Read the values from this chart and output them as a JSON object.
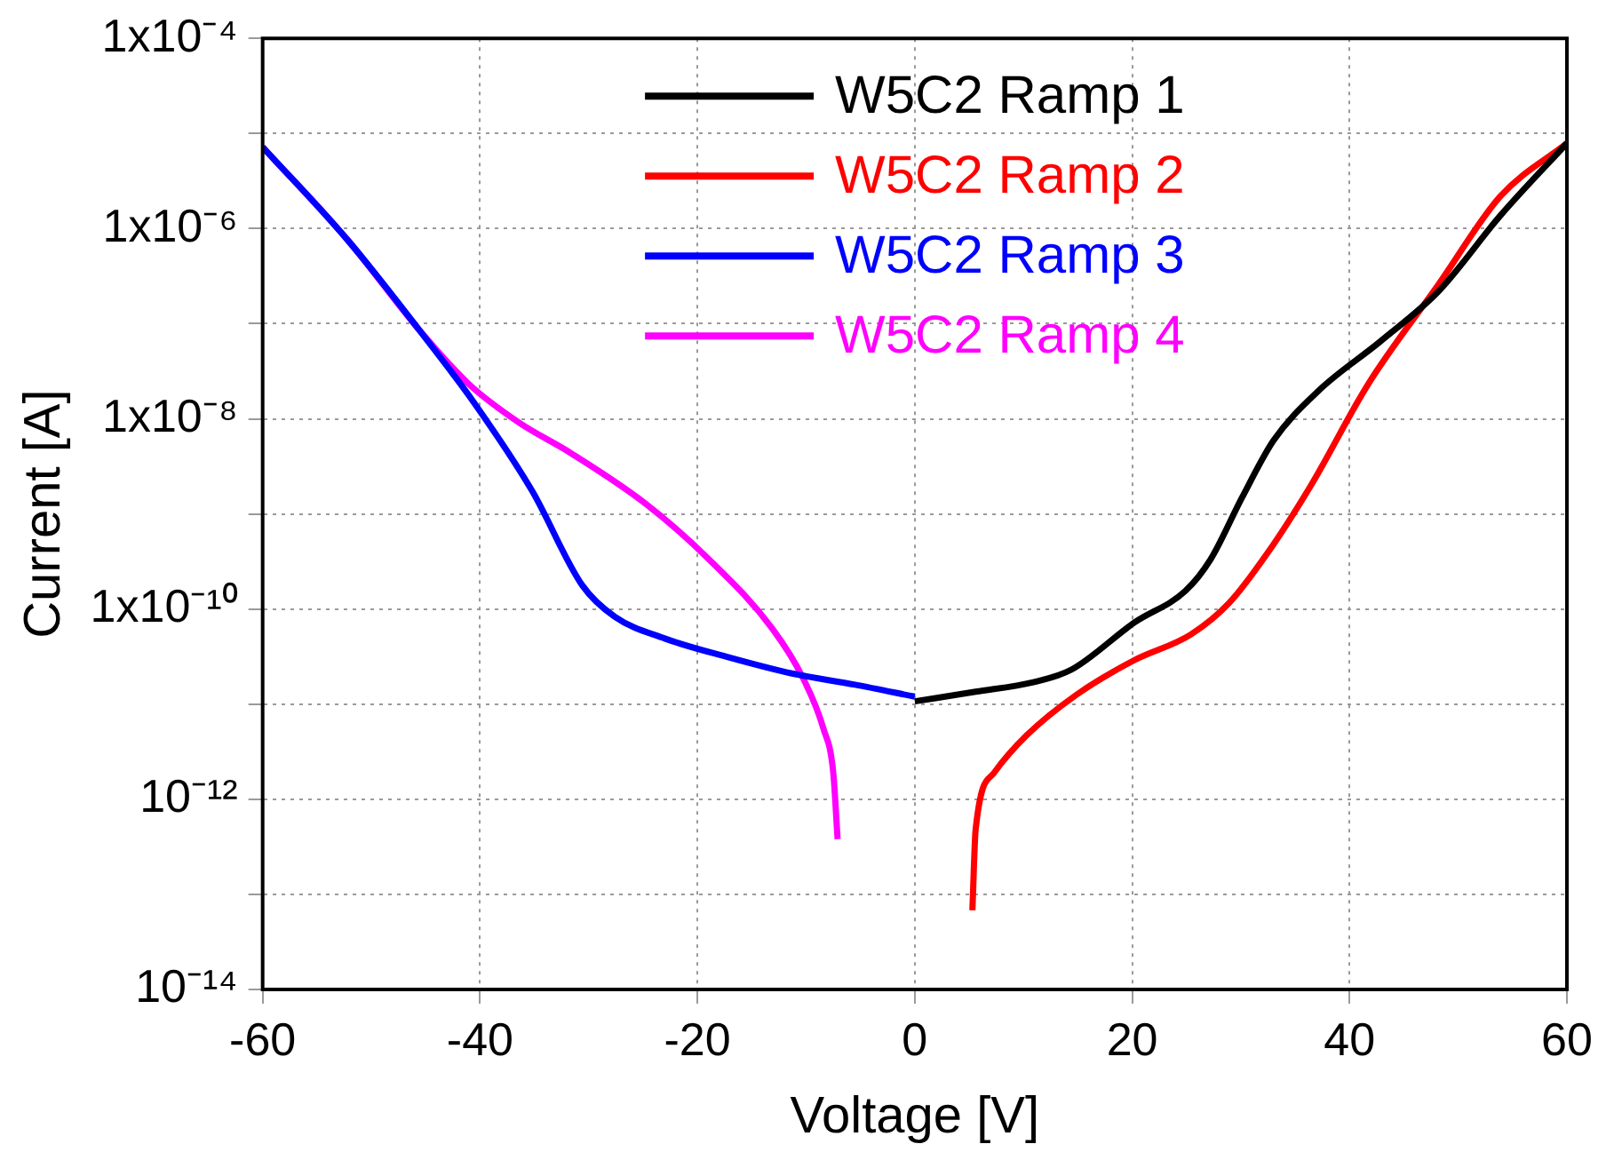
{
  "chart_data": {
    "type": "line",
    "xlabel": "Voltage [V]",
    "ylabel": "Current [A]",
    "log": "y",
    "xlim": [
      -60,
      60
    ],
    "xticks": [
      -60,
      -40,
      -20,
      0,
      20,
      40,
      60
    ],
    "ylim": [
      1e-14,
      0.0001
    ],
    "yticks": [
      {
        "value": 1e-14,
        "label": "10⁻¹⁴"
      },
      {
        "value": 1e-13,
        "label": null
      },
      {
        "value": 1e-12,
        "label": "10⁻¹²"
      },
      {
        "value": 1e-11,
        "label": null
      },
      {
        "value": 1e-10,
        "label": "1x10⁻¹⁰"
      },
      {
        "value": 1e-09,
        "label": null
      },
      {
        "value": 1e-08,
        "label": "1x10⁻⁸"
      },
      {
        "value": 1e-07,
        "label": null
      },
      {
        "value": 1e-06,
        "label": "1x10⁻⁶"
      },
      {
        "value": 1e-05,
        "label": null
      },
      {
        "value": 0.0001,
        "label": "1x10⁻⁴"
      }
    ],
    "grid": true,
    "legend": "top",
    "marker": "none",
    "line_style": "solid",
    "series": [
      {
        "name": "W5C2 Ramp 1",
        "color": "#000000",
        "x": [
          0,
          5.6,
          10.9,
          14.4,
          20.2,
          24.9,
          27.2,
          30.1,
          33.0,
          37.1,
          42.9,
          48.2,
          53.9,
          60
        ],
        "values": [
          1.07e-11,
          1.35e-11,
          1.7e-11,
          2.3e-11,
          7.2e-11,
          1.55e-10,
          3.3e-10,
          1.48e-09,
          5.9e-09,
          1.95e-08,
          6.6e-08,
          2.2e-07,
          1.38e-06,
          7.9e-06
        ]
      },
      {
        "name": "W5C2 Ramp 2",
        "color": "#ff0000",
        "x": [
          5.3,
          5.6,
          7.3,
          10.3,
          14.9,
          20.2,
          25.4,
          28.9,
          32.4,
          36.5,
          41.7,
          48.2,
          53.9,
          60
        ],
        "values": [
          6.8e-14,
          4.8e-13,
          1.9e-12,
          4.7e-12,
          1.26e-11,
          2.9e-11,
          5.4e-11,
          1.15e-10,
          3.8e-10,
          2.04e-09,
          2.3e-08,
          2.6e-07,
          2.2e-06,
          7.9e-06
        ]
      },
      {
        "name": "W5C2 Ramp 3",
        "color": "#0000ff",
        "x": [
          -60,
          -52.1,
          -45.7,
          -40.5,
          -35.2,
          -30.6,
          -27.6,
          -23.0,
          -17.1,
          -11.3,
          -5.5,
          0
        ],
        "values": [
          7.2e-06,
          7.4e-07,
          8.9e-08,
          1.45e-08,
          1.74e-09,
          1.78e-10,
          8.3e-11,
          4.9e-11,
          3.1e-11,
          2.1e-11,
          1.6e-11,
          1.2e-11
        ]
      },
      {
        "name": "W5C2 Ramp 4",
        "color": "#ff00ff",
        "x": [
          -60,
          -52.1,
          -45.7,
          -41.0,
          -36.4,
          -31.7,
          -24.8,
          -18.9,
          -13.1,
          -10.2,
          -8.4,
          -7.5,
          -7.1
        ],
        "values": [
          7.2e-06,
          7.4e-07,
          8.9e-08,
          2.3e-08,
          9.1e-09,
          4.4e-09,
          1.29e-09,
          3.3e-10,
          6.2e-11,
          1.8e-11,
          5.5e-12,
          1.9e-12,
          3.8e-13
        ]
      }
    ]
  }
}
